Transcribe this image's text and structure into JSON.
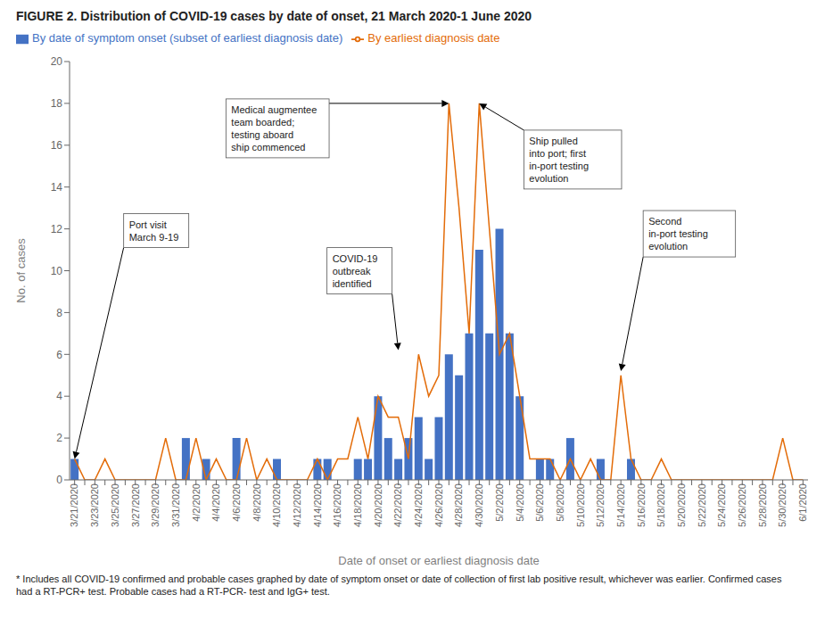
{
  "chart_data": {
    "type": "bar",
    "title": "FIGURE 2. Distribution of COVID-19 cases by date of onset, 21 March 2020-1 June 2020",
    "x_label": "Date of onset or earliest diagnosis date",
    "y_label": "No.  of cases",
    "footnote": "* Includes all COVID-19 confirmed and probable cases graphed by date of symptom onset or date of collection of first lab positive result, whichever was earlier. Confirmed cases\nhad a RT-PCR+ test. Probable cases had a RT-PCR- test and IgG+ test.",
    "categories": [
      "3/21/2020",
      null,
      "3/23/2020",
      null,
      "3/25/2020",
      null,
      "3/27/2020",
      null,
      "3/29/2020",
      null,
      "3/31/2020",
      null,
      "4/2/2020",
      null,
      "4/4/2020",
      null,
      "4/6/2020",
      null,
      "4/8/2020",
      null,
      "4/10/2020",
      null,
      "4/12/2020",
      null,
      "4/14/2020",
      null,
      "4/16/2020",
      null,
      "4/18/2020",
      null,
      "4/20/2020",
      null,
      "4/22/2020",
      null,
      "4/24/2020",
      null,
      "4/26/2020",
      null,
      "4/28/2020",
      null,
      "4/30/2020",
      null,
      "5/2/2020",
      null,
      "5/4/2020",
      null,
      "5/6/2020",
      null,
      "5/8/2020",
      null,
      "5/10/2020",
      null,
      "5/12/2020",
      null,
      "5/14/2020",
      null,
      "5/16/2020",
      null,
      "5/18/2020",
      null,
      "5/20/2020",
      null,
      "5/22/2020",
      null,
      "5/24/2020",
      null,
      "5/26/2020",
      null,
      "5/28/2020",
      null,
      "5/30/2020",
      null,
      "6/1/2020"
    ],
    "series": [
      {
        "name": "By date of symptom onset (subset of earliest diagnosis date)",
        "type": "bar",
        "color": "#4472C4",
        "values": [
          1,
          0,
          0,
          0,
          0,
          0,
          0,
          0,
          0,
          0,
          0,
          2,
          0,
          1,
          0,
          0,
          2,
          0,
          0,
          0,
          1,
          0,
          0,
          0,
          1,
          1,
          0,
          0,
          1,
          1,
          4,
          2,
          1,
          2,
          3,
          1,
          3,
          6,
          5,
          7,
          11,
          7,
          12,
          7,
          4,
          0,
          1,
          1,
          0,
          2,
          0,
          0,
          1,
          0,
          0,
          1,
          0,
          0,
          0,
          0,
          0,
          0,
          0,
          0,
          0,
          0,
          0,
          0,
          0,
          0,
          0,
          0,
          0
        ]
      },
      {
        "name": "By earliest diagnosis date",
        "type": "line",
        "color": "#E36C09",
        "values": [
          1,
          0,
          0,
          1,
          0,
          0,
          0,
          0,
          0,
          2,
          0,
          0,
          2,
          0,
          1,
          0,
          0,
          2,
          0,
          1,
          0,
          0,
          0,
          0,
          1,
          0,
          1,
          1,
          3,
          1,
          4,
          3,
          3,
          1,
          6,
          4,
          5,
          18,
          13,
          7,
          18,
          12,
          6,
          7,
          4,
          1,
          1,
          1,
          0,
          1,
          0,
          1,
          0,
          0,
          5,
          1,
          0,
          0,
          1,
          0,
          0,
          0,
          0,
          0,
          0,
          0,
          0,
          0,
          0,
          0,
          2,
          0,
          0
        ]
      }
    ],
    "ylim": [
      0,
      20
    ],
    "yticks": [
      0,
      2,
      4,
      6,
      8,
      10,
      12,
      14,
      16,
      18,
      20
    ],
    "grid": false,
    "legend": "upper left",
    "annotations": [
      {
        "text": "Port visit\nMarch 9-19",
        "x": 0,
        "y": 1
      },
      {
        "text": "COVID-19\noutbreak\nidentified",
        "x": 32,
        "y": 6.2
      },
      {
        "text": "Medical augmentee\nteam boarded;\ntesting aboard\nship commenced",
        "x": 37,
        "y": 18
      },
      {
        "text": "Ship pulled\ninto port; first\nin-port testing\nevolution",
        "x": 40,
        "y": 18
      },
      {
        "text": "Second\nin-port testing\nevolution",
        "x": 54,
        "y": 5.2
      }
    ]
  }
}
